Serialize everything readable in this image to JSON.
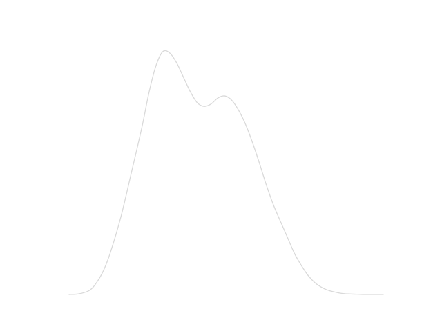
{
  "chart_data": {
    "type": "line",
    "title": "",
    "xlabel": "",
    "ylabel": "",
    "axes_visible": false,
    "grid": false,
    "legend": "none",
    "xlim": [
      0,
      1
    ],
    "ylim": [
      0,
      1
    ],
    "series": [
      {
        "color": "#d9d9d9",
        "x": [
          0.0,
          0.033,
          0.066,
          0.088,
          0.11,
          0.132,
          0.165,
          0.198,
          0.232,
          0.254,
          0.276,
          0.298,
          0.32,
          0.342,
          0.364,
          0.386,
          0.408,
          0.43,
          0.452,
          0.474,
          0.496,
          0.518,
          0.54,
          0.562,
          0.584,
          0.606,
          0.628,
          0.65,
          0.673,
          0.695,
          0.717,
          0.739,
          0.761,
          0.783,
          0.806,
          0.828,
          0.85,
          0.872,
          0.895,
          0.917,
          0.939,
          0.961,
          0.983,
          1.0
        ],
        "y": [
          0.0,
          0.003,
          0.018,
          0.05,
          0.1,
          0.175,
          0.32,
          0.5,
          0.69,
          0.83,
          0.94,
          1.0,
          0.995,
          0.955,
          0.895,
          0.835,
          0.79,
          0.775,
          0.785,
          0.81,
          0.818,
          0.8,
          0.758,
          0.7,
          0.625,
          0.54,
          0.45,
          0.37,
          0.3,
          0.235,
          0.17,
          0.12,
          0.078,
          0.048,
          0.028,
          0.016,
          0.009,
          0.004,
          0.002,
          0.001,
          0.0,
          0.0,
          0.0,
          0.0
        ]
      }
    ]
  }
}
